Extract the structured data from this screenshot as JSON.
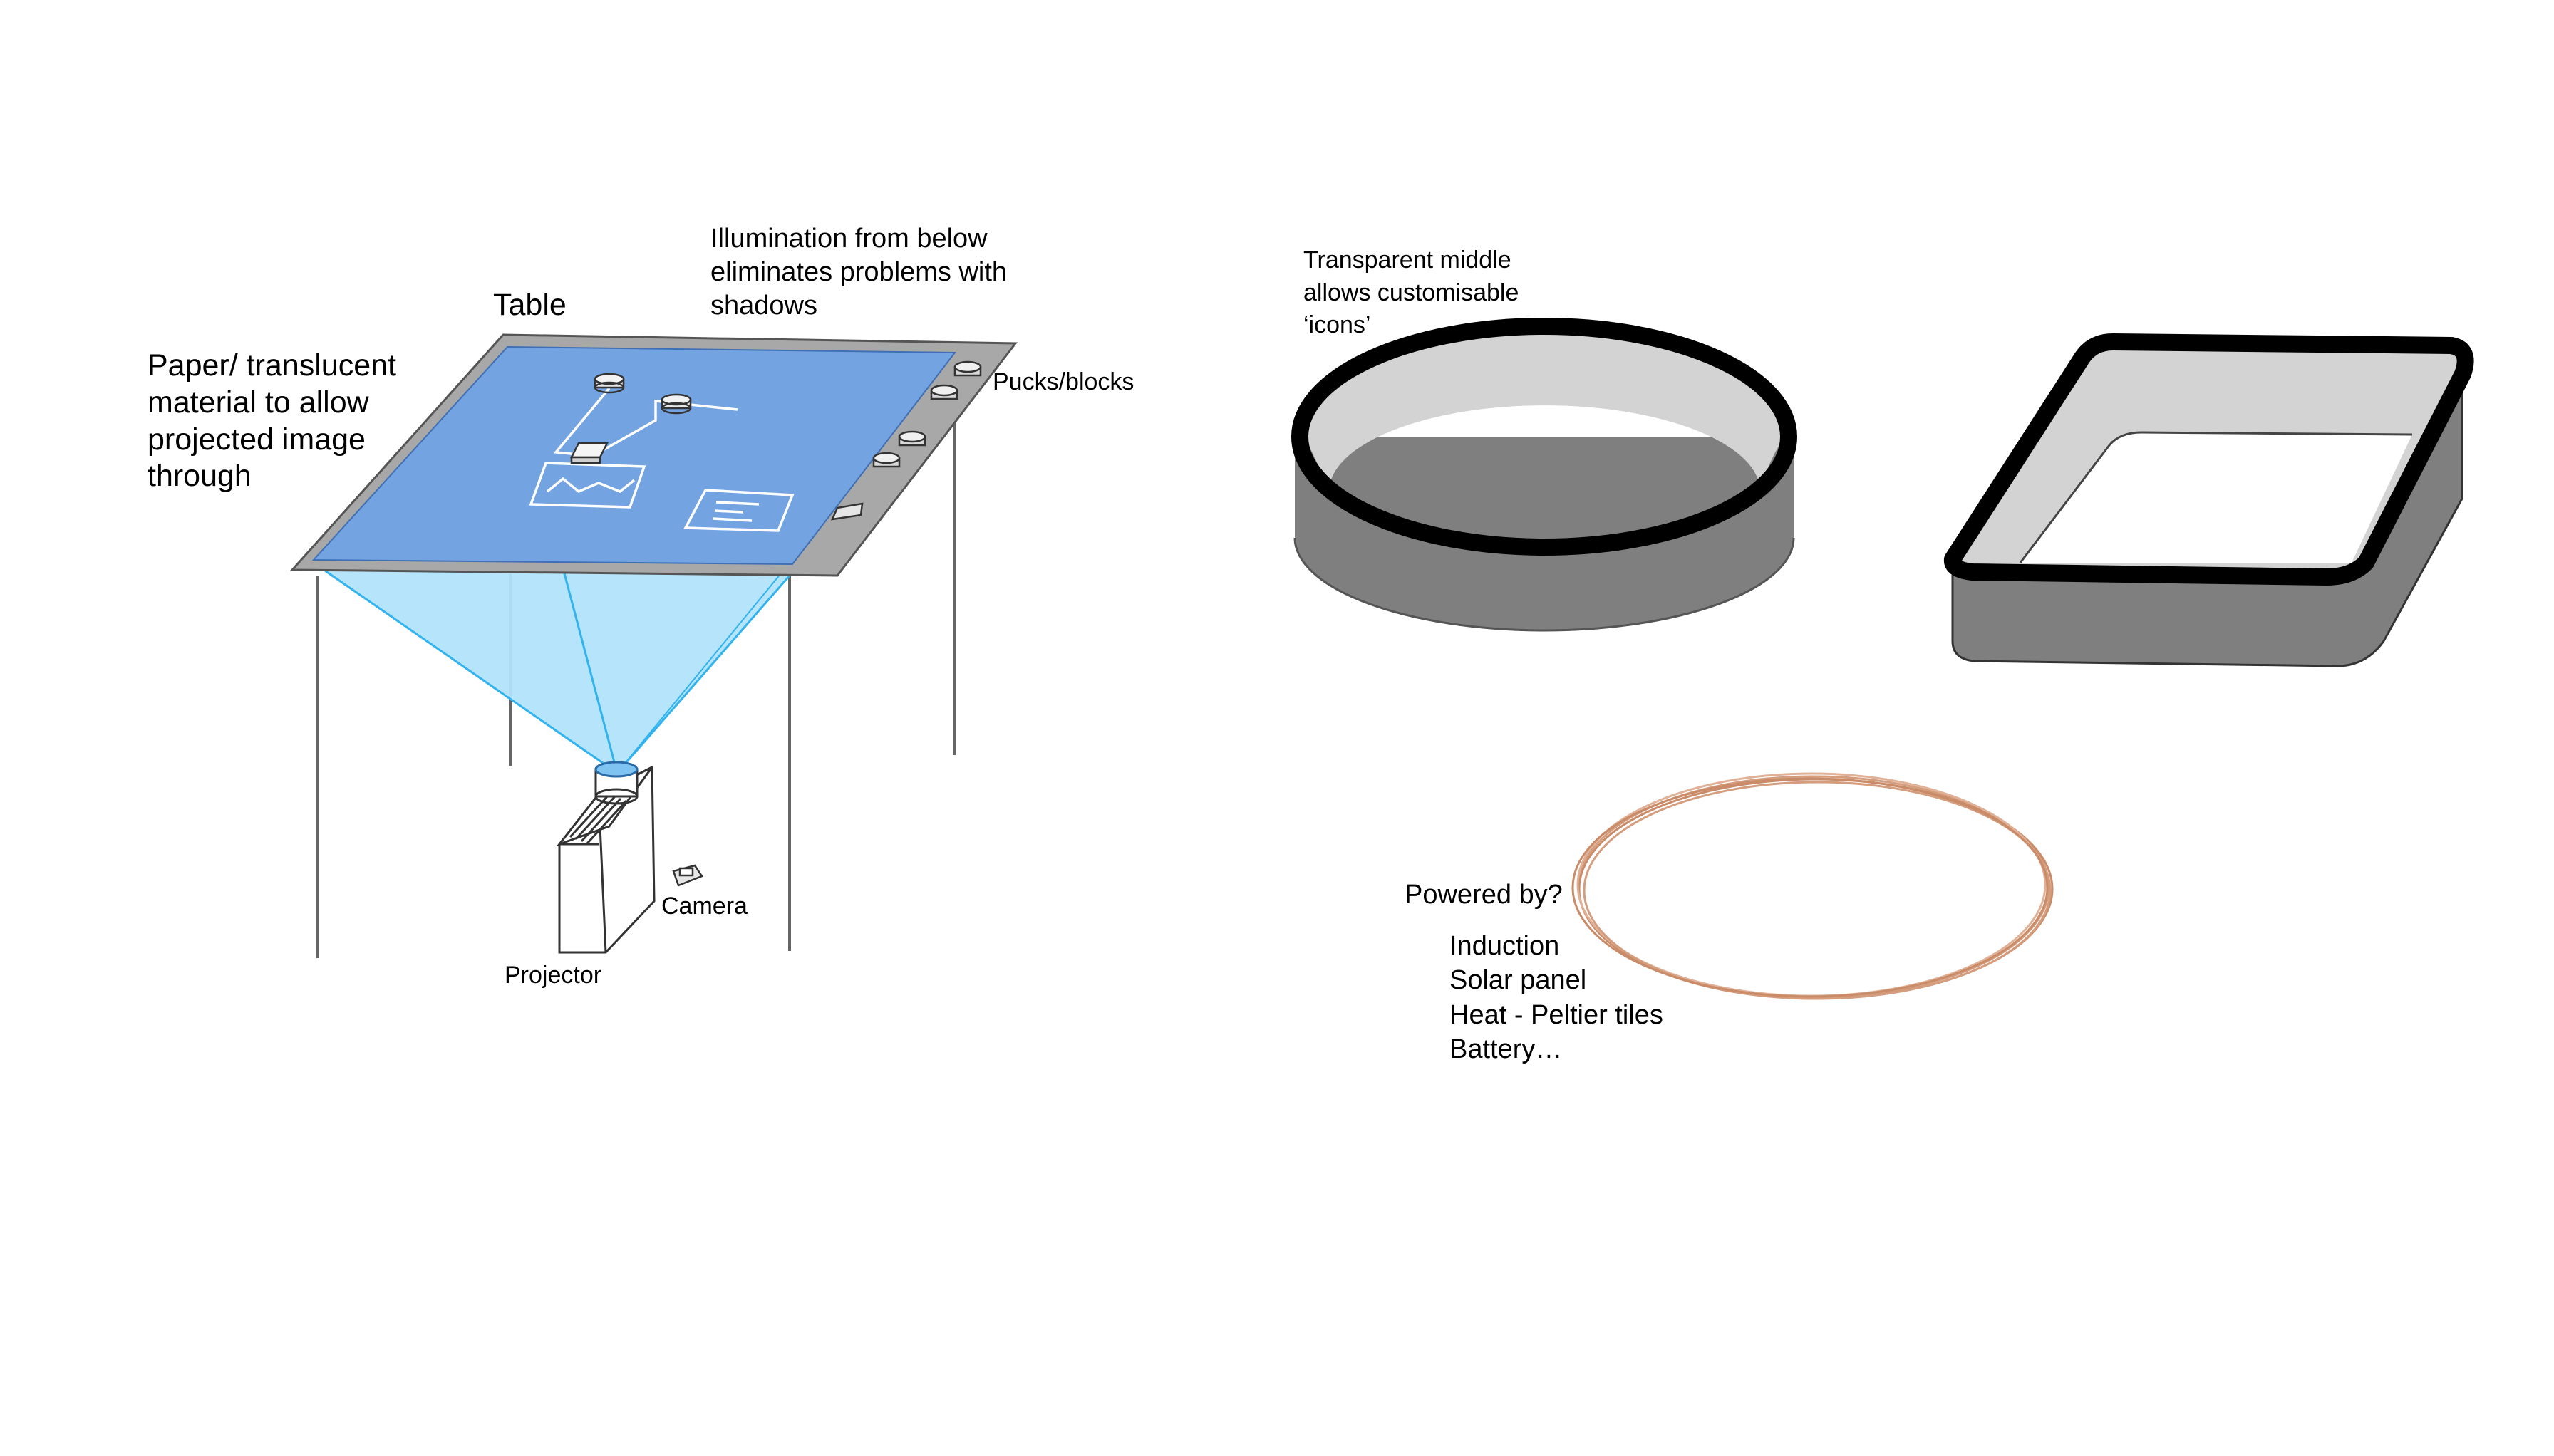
{
  "table_section": {
    "label_table": "Table",
    "label_paper": [
      "Paper/ translucent",
      "material to allow",
      "projected image",
      "through"
    ],
    "label_illumination": [
      "Illumination from below",
      "eliminates problems with",
      "shadows"
    ],
    "label_pucks": "Pucks/blocks",
    "label_camera": "Camera",
    "label_projector": "Projector"
  },
  "puck_section": {
    "label_transparent": [
      "Transparent middle",
      "allows customisable",
      "‘icons’"
    ]
  },
  "power_section": {
    "label_question": "Powered by?",
    "options": [
      "Induction",
      "Solar panel",
      "Heat - Peltier tiles",
      "Battery…"
    ]
  },
  "colors": {
    "table_surface": "#73a3e0",
    "table_frame": "#a8a8a8",
    "projection_light": "#b2e3fb",
    "projection_edge": "#31b3ef",
    "puck_side": "#7f7f7f",
    "puck_inner": "#d3d3d3",
    "coil": "#d49d7e"
  }
}
